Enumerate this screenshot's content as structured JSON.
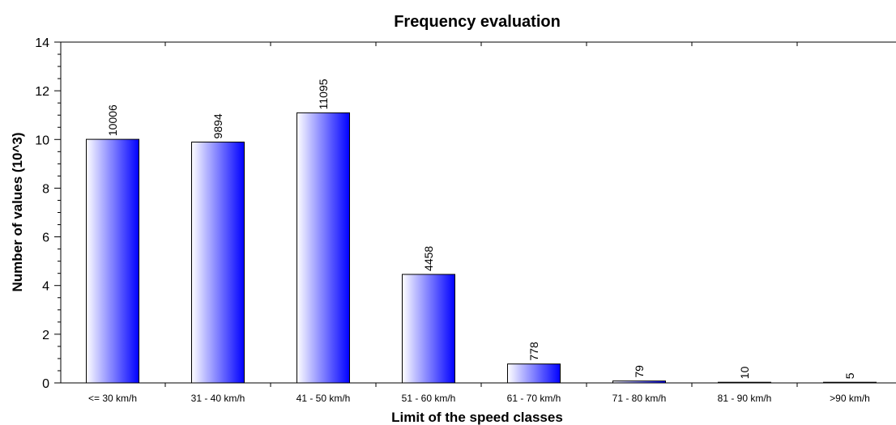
{
  "chart_data": {
    "type": "bar",
    "title": "Frequency evaluation",
    "xlabel": "Limit of the speed classes",
    "ylabel": "Number of values (10^3)",
    "categories": [
      "<=  30  km/h",
      "31 -  40  km/h",
      "41 -  50  km/h",
      "51 -  60  km/h",
      "61 -  70  km/h",
      "71 -  80  km/h",
      "81 - 90  km/h",
      ">90  km/h"
    ],
    "values": [
      10006,
      9894,
      11095,
      4458,
      778,
      79,
      10,
      5
    ],
    "data_labels": [
      "10006",
      "9894",
      "11095",
      "4458",
      "778",
      "79",
      "10",
      "5"
    ],
    "value_scale": 1000,
    "ylim": [
      0,
      14
    ],
    "yticks": [
      "0",
      "2",
      "4",
      "6",
      "8",
      "10",
      "12",
      "14"
    ],
    "grid": false,
    "colors": {
      "bar_light": "#ffffff",
      "bar_dark": "#0000ff",
      "axis": "#000000"
    }
  }
}
